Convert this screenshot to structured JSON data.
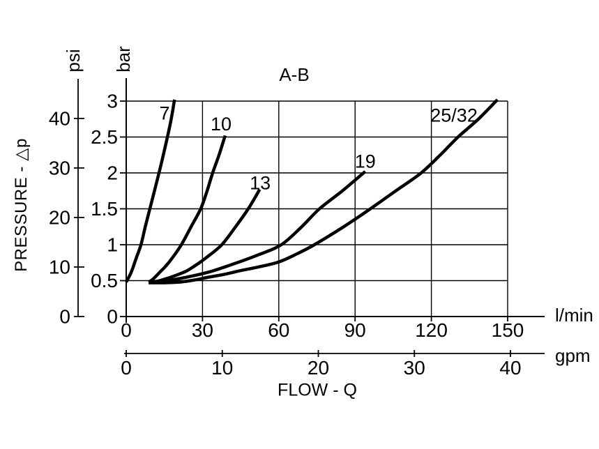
{
  "background": "#ffffff",
  "ink": "#000000",
  "chart_data": {
    "type": "line",
    "title": "A-B",
    "xlabel": "FLOW - Q",
    "ylabel": "PRESSURE - △p",
    "grid": true,
    "legend": "inline-curve-labels",
    "axes": {
      "y_bar": {
        "unit": "bar",
        "ticks": [
          0,
          0.5,
          1,
          1.5,
          2,
          2.5,
          3
        ],
        "range": [
          0,
          3
        ]
      },
      "y_psi": {
        "unit": "psi",
        "ticks": [
          0,
          10,
          20,
          30,
          40
        ],
        "range": [
          0,
          43.5
        ]
      },
      "x_lmin": {
        "unit": "l/min",
        "ticks": [
          0,
          30,
          60,
          90,
          120,
          150
        ],
        "range": [
          0,
          150
        ]
      },
      "x_gpm": {
        "unit": "gpm",
        "ticks": [
          0,
          10,
          20,
          30,
          40
        ],
        "range": [
          0,
          40
        ]
      }
    },
    "series": [
      {
        "name": "7",
        "label": "7",
        "label_at": {
          "q": 15.1,
          "bar": 2.83
        },
        "points": [
          [
            0,
            0.48
          ],
          [
            2,
            0.62
          ],
          [
            4,
            0.82
          ],
          [
            5.8,
            1.0
          ],
          [
            7.5,
            1.25
          ],
          [
            9.3,
            1.5
          ],
          [
            11.1,
            1.75
          ],
          [
            12.9,
            2.0
          ],
          [
            14.6,
            2.25
          ],
          [
            16.2,
            2.5
          ],
          [
            17.7,
            2.75
          ],
          [
            19,
            3.02
          ]
        ]
      },
      {
        "name": "10",
        "label": "10",
        "label_at": {
          "q": 37.3,
          "bar": 2.68
        },
        "points": [
          [
            8.8,
            0.48
          ],
          [
            10.5,
            0.52
          ],
          [
            13,
            0.61
          ],
          [
            15.5,
            0.7
          ],
          [
            18,
            0.81
          ],
          [
            21.7,
            1.0
          ],
          [
            25.5,
            1.25
          ],
          [
            29.3,
            1.5
          ],
          [
            31.8,
            1.75
          ],
          [
            34,
            2.0
          ],
          [
            36.5,
            2.25
          ],
          [
            38.9,
            2.52
          ]
        ]
      },
      {
        "name": "13",
        "label": "13",
        "label_at": {
          "q": 52.7,
          "bar": 1.86
        },
        "points": [
          [
            8.8,
            0.48
          ],
          [
            12,
            0.49
          ],
          [
            16,
            0.53
          ],
          [
            20,
            0.58
          ],
          [
            24,
            0.64
          ],
          [
            28,
            0.73
          ],
          [
            31.5,
            0.82
          ],
          [
            37.6,
            1.0
          ],
          [
            43,
            1.25
          ],
          [
            48,
            1.5
          ],
          [
            52.5,
            1.77
          ]
        ]
      },
      {
        "name": "19",
        "label": "19",
        "label_at": {
          "q": 94.0,
          "bar": 2.16
        },
        "points": [
          [
            8.8,
            0.48
          ],
          [
            16,
            0.5
          ],
          [
            24,
            0.55
          ],
          [
            32.6,
            0.62
          ],
          [
            42,
            0.73
          ],
          [
            52,
            0.86
          ],
          [
            61,
            1.0
          ],
          [
            69,
            1.25
          ],
          [
            76,
            1.5
          ],
          [
            85,
            1.75
          ],
          [
            94,
            2.02
          ]
        ]
      },
      {
        "name": "25/32",
        "label": "25/32",
        "label_at": {
          "q": 128.9,
          "bar": 2.8
        },
        "points": [
          [
            8.8,
            0.47
          ],
          [
            15,
            0.47
          ],
          [
            21,
            0.48
          ],
          [
            27,
            0.51
          ],
          [
            32.6,
            0.55
          ],
          [
            39,
            0.59
          ],
          [
            45,
            0.64
          ],
          [
            52,
            0.69
          ],
          [
            60,
            0.76
          ],
          [
            67,
            0.87
          ],
          [
            74,
            1.0
          ],
          [
            85.5,
            1.25
          ],
          [
            96,
            1.5
          ],
          [
            106,
            1.75
          ],
          [
            116,
            2.0
          ],
          [
            123.5,
            2.25
          ],
          [
            130.5,
            2.5
          ],
          [
            138.5,
            2.75
          ],
          [
            146,
            3.02
          ]
        ]
      }
    ]
  }
}
